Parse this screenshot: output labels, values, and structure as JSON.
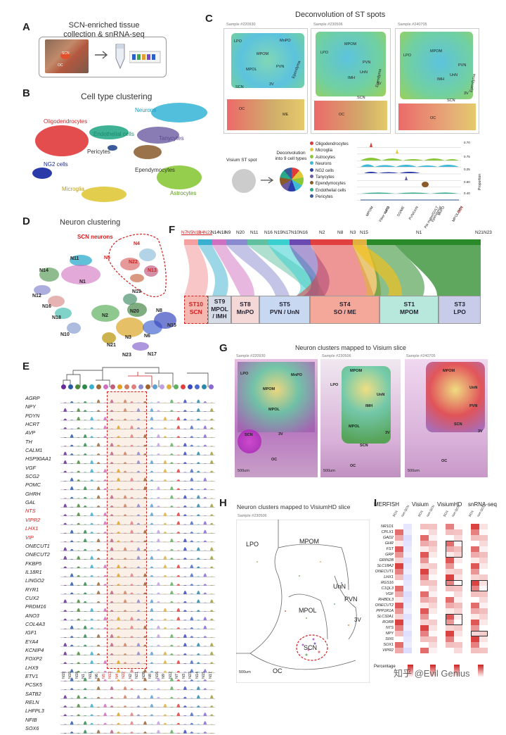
{
  "panels": {
    "A": {
      "label": "A",
      "title": "SCN-enriched tissue\ncollection & snRNA-seq",
      "inset_labels": [
        "SCN",
        "OC"
      ]
    },
    "B": {
      "label": "B",
      "title": "Cell type clustering",
      "clusters": [
        {
          "name": "Oligodendrocytes",
          "color": "#e03a3a"
        },
        {
          "name": "Neurons",
          "color": "#3fb8d8"
        },
        {
          "name": "Endothelial cells",
          "color": "#2aa88a"
        },
        {
          "name": "Tanycytes",
          "color": "#6b5aa0"
        },
        {
          "name": "Pericytes",
          "color": "#3a5a9a"
        },
        {
          "name": "NG2 cells",
          "color": "#2a3aa8"
        },
        {
          "name": "Ependymocytes",
          "color": "#8a5a2a"
        },
        {
          "name": "Microglia",
          "color": "#e0c83a"
        },
        {
          "name": "Astrocytes",
          "color": "#8ac83a"
        }
      ]
    },
    "C": {
      "label": "C",
      "title": "Deconvolution of ST spots",
      "samples": [
        "Sample #220930",
        "Sample #230506",
        "Sample #240705"
      ],
      "slice1_regions": [
        "LPO",
        "MPOM",
        "MnPO",
        "MPOL",
        "Ependyma",
        "PVN",
        "3V",
        "SCN",
        "OC",
        "ME"
      ],
      "slice2_regions": [
        "LPO",
        "MPOM",
        "PVN",
        "UnN",
        "IMH",
        "Ependyma",
        "3V",
        "SCN",
        "OC"
      ],
      "slice3_regions": [
        "LPO",
        "MPOM",
        "PVN",
        "UnN",
        "IMH",
        "Ependyma",
        "3V",
        "SCN",
        "OC"
      ],
      "scale": "500um",
      "visium_label": "Visium ST spot",
      "deconv_label": "Deconvolution\ninto 9 cell types",
      "violin_celltypes": [
        {
          "name": "Oligodendrocytes",
          "color": "#e03a3a"
        },
        {
          "name": "Microglia",
          "color": "#e0c83a"
        },
        {
          "name": "Astrocytes",
          "color": "#8ac83a"
        },
        {
          "name": "Neurons",
          "color": "#3fb8d8"
        },
        {
          "name": "NG2 cells",
          "color": "#2a3aa8"
        },
        {
          "name": "Tanycytes",
          "color": "#6b5aa0"
        },
        {
          "name": "Ependymocytes",
          "color": "#8a5a2a"
        },
        {
          "name": "Endothelial cells",
          "color": "#2aa88a"
        },
        {
          "name": "Pericytes",
          "color": "#3a5a9a"
        }
      ],
      "violin_x": [
        "MPOM",
        "Fiber tracts",
        "LPO",
        "SO/ME",
        "PVN/UnN",
        "Pia mater/OVLT",
        "Ependymal",
        "MnPO",
        "MPOL/IMH",
        "SCN"
      ],
      "violin_y_ticks": [
        "0.70",
        "0.00",
        "0.75",
        "0.00",
        "0.25",
        "0.00",
        "0.60",
        "0.00",
        "0.40",
        "0.00",
        "0.60",
        "0.00"
      ],
      "y_axis": "Proportion"
    },
    "D": {
      "label": "D",
      "title": "Neuron clustering",
      "highlight": "SCN neurons",
      "clusters": [
        "N11",
        "N14",
        "N1",
        "N12",
        "N16",
        "N18",
        "N10",
        "N4",
        "N5",
        "N22",
        "N13",
        "N19",
        "N20",
        "N8",
        "N2",
        "N21",
        "N3",
        "N6",
        "N15",
        "N23",
        "N17"
      ]
    },
    "E": {
      "label": "E",
      "genes": [
        "AGRP",
        "NPY",
        "PDYN",
        "HCRT",
        "AVP",
        "TH",
        "CALM1",
        "HSP90AA1",
        "VGF",
        "SCG2",
        "POMC",
        "GHRH",
        "GAL",
        "NTS",
        "VIPR2",
        "LHX1",
        "VIP",
        "ONECUT1",
        "ONECUT2",
        "FKBP5",
        "IL18R1",
        "LINGO2",
        "RYR1",
        "CUX2",
        "PRDM16",
        "ANO3",
        "COL4A3",
        "IGF1",
        "EYA4",
        "KCNIP4",
        "FOXP2",
        "LHX9",
        "ETV1",
        "PCSK5",
        "SATB2",
        "RELN",
        "LHFPL3",
        "NFIB",
        "SOX6"
      ],
      "red_genes": [
        "NTS",
        "VIPR2",
        "LHX1",
        "VIP"
      ],
      "x_clusters": [
        "N19",
        "N10",
        "N18",
        "N1",
        "N11",
        "N6",
        "N5",
        "N13",
        "N4",
        "N22",
        "N2",
        "N21",
        "N20",
        "N8",
        "N16",
        "N9",
        "N12",
        "N7",
        "N3",
        "N23",
        "N14",
        "N15",
        "N17"
      ],
      "red_x": [
        "N5",
        "N13",
        "N4",
        "N22"
      ]
    },
    "F": {
      "label": "F",
      "top_clusters": [
        "N7",
        "N5",
        "N12",
        "N4",
        "N22",
        "N14",
        "N18",
        "N9",
        "N20",
        "N11",
        "N16",
        "N19",
        "N17",
        "N10",
        "N16",
        "N2",
        "N8",
        "N3",
        "N15",
        "N1",
        "N21",
        "N23"
      ],
      "top_red": [
        "N7",
        "N5",
        "N12",
        "N4",
        "N22"
      ],
      "st_regions": [
        {
          "id": "ST10",
          "name": "SCN",
          "color": "#f4b8b0"
        },
        {
          "id": "ST9",
          "name": "MPOL\n/ IMH",
          "color": "#d6dce6"
        },
        {
          "id": "ST8",
          "name": "MnPO",
          "color": "#f4d8d8"
        },
        {
          "id": "ST5",
          "name": "PVN / UnN",
          "color": "#c8d8f0"
        },
        {
          "id": "ST4",
          "name": "SO / ME",
          "color": "#f4a89a"
        },
        {
          "id": "ST1",
          "name": "MPOM",
          "color": "#b8e8dc"
        },
        {
          "id": "ST3",
          "name": "LPO",
          "color": "#c8cce8"
        }
      ]
    },
    "G": {
      "label": "G",
      "title": "Neuron clusters mapped to Visium slice",
      "samples": [
        "Sample #220930",
        "Sample #230506",
        "Sample #240705"
      ],
      "slice1_regions": [
        "LPO",
        "MnPO",
        "MPOM",
        "MPOL",
        "SCN",
        "3V",
        "OC"
      ],
      "slice2_regions": [
        "LPO",
        "MPOM",
        "UnN",
        "IMH",
        "MPOL",
        "3V",
        "SCN",
        "OC"
      ],
      "slice3_regions": [
        "MPOM",
        "UnN",
        "PVN",
        "SCN",
        "3V",
        "OC"
      ],
      "scale": "500um"
    },
    "H": {
      "label": "H",
      "title": "Neuron clusters mapped to VisiumHD slice",
      "sample": "Sample #230506",
      "regions": [
        "LPO",
        "MPOM",
        "UnN",
        "PVN",
        "MPOL",
        "3V",
        "SCN",
        "OC"
      ],
      "scale": "500um"
    },
    "I": {
      "label": "I",
      "methods": [
        "MERFISH",
        "Visium",
        "VisiumHD",
        "snRNA-seq"
      ],
      "sub_cols": [
        "SCN",
        "non-SCN"
      ],
      "genes": [
        "NR1D1",
        "CPLX1",
        "GAD2",
        "GHR",
        "FST",
        "GRP",
        "GRIN2B",
        "SLC18A2",
        "ONECUT1",
        "LHX1",
        "RGS16",
        "C1QL3",
        "VGF",
        "RHBDL3",
        "ONECUT2",
        "PPP1R1A",
        "SLC32A1",
        "RORB",
        "NTS",
        "NPY",
        "SIX6",
        "SOX1",
        "VIPR2"
      ],
      "legend_label": "Percentage",
      "watermark": "知乎 @Evil Genius"
    }
  }
}
